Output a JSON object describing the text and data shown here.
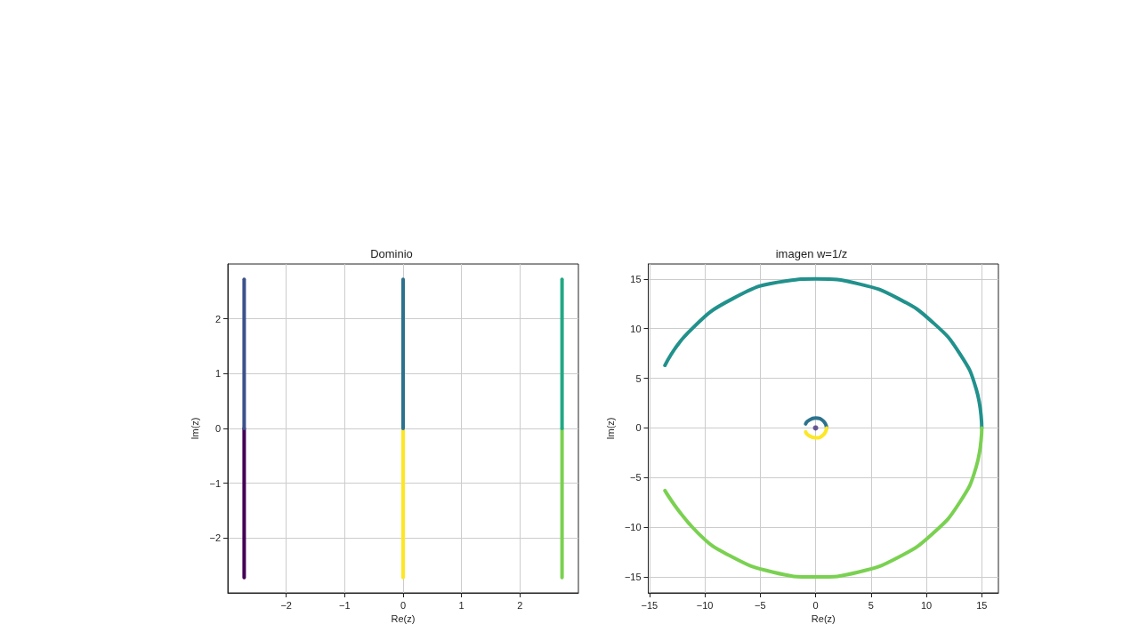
{
  "chart_data": [
    {
      "type": "line",
      "title": "Dominio",
      "xlabel": "Re(z)",
      "ylabel": "Im(z)",
      "xlim": [
        -3,
        3
      ],
      "ylim": [
        -3,
        3
      ],
      "xticks": [
        -2,
        -1,
        0,
        1,
        2
      ],
      "yticks": [
        -2,
        -1,
        0,
        1,
        2
      ],
      "grid": true,
      "marker": "none",
      "line_style": "solid",
      "series": [
        {
          "color": "#440154",
          "x": [
            -2.72,
            -2.72
          ],
          "values": [
            -2.72,
            0
          ]
        },
        {
          "color": "#3b528b",
          "x": [
            -2.72,
            -2.72
          ],
          "values": [
            0,
            2.72
          ]
        },
        {
          "color": "#fde725",
          "x": [
            0,
            0
          ],
          "values": [
            -2.72,
            0
          ]
        },
        {
          "color": "#2c728e",
          "x": [
            0,
            0
          ],
          "values": [
            0,
            2.72
          ]
        },
        {
          "color": "#7ad151",
          "x": [
            2.72,
            2.72
          ],
          "values": [
            -2.72,
            0
          ]
        },
        {
          "color": "#22a884",
          "x": [
            2.72,
            2.72
          ],
          "values": [
            0,
            2.72
          ]
        }
      ]
    },
    {
      "type": "line",
      "title": "imagen w=1/z",
      "xlabel": "Re(z)",
      "ylabel": "Im(z)",
      "xlim": [
        -15.1,
        16.5
      ],
      "ylim": [
        -16.6,
        16.5
      ],
      "xticks": [
        -15,
        -10,
        -5,
        0,
        5,
        10,
        15
      ],
      "yticks": [
        -15,
        -10,
        -5,
        0,
        5,
        10,
        15
      ],
      "grid": true,
      "marker": "none",
      "line_style": "solid",
      "series": [
        {
          "color": "#21918c",
          "x": [
            -13.6,
            -11.5,
            -7.5,
            -2.6,
            0,
            3.9,
            7.5,
            10.6,
            13.0,
            14.5,
            15
          ],
          "values": [
            6.3,
            9.6,
            13.0,
            14.8,
            15,
            14.5,
            13.0,
            10.6,
            7.5,
            3.9,
            0
          ]
        },
        {
          "color": "#7ad151",
          "x": [
            15,
            14.5,
            13.0,
            10.6,
            7.5,
            3.9,
            0,
            -3.9,
            -7.5,
            -10.6,
            -13.6
          ],
          "values": [
            0,
            -3.9,
            -7.5,
            -10.6,
            -13.0,
            -14.5,
            -15,
            -14.5,
            -13.0,
            -10.6,
            -6.3
          ]
        },
        {
          "color": "#2c728e",
          "x": [
            -0.9,
            -0.7,
            0,
            0.7,
            1
          ],
          "values": [
            0.4,
            0.7,
            1,
            0.7,
            0
          ]
        },
        {
          "color": "#fde725",
          "x": [
            1,
            0.7,
            0,
            -0.7,
            -0.9
          ],
          "values": [
            0,
            -0.7,
            -1,
            -0.7,
            -0.4
          ]
        },
        {
          "type": "scatter",
          "color": "#46327e",
          "x": [
            0
          ],
          "values": [
            0
          ]
        }
      ]
    }
  ]
}
